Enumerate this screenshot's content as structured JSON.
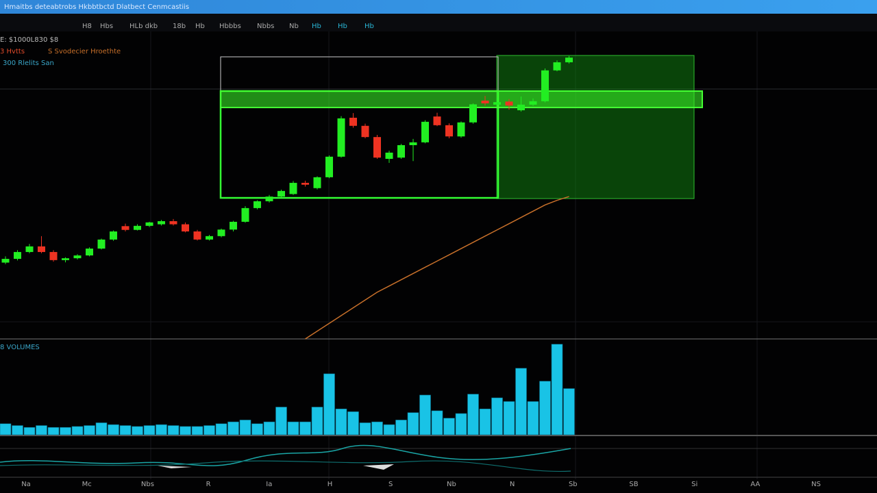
{
  "window": {
    "title": "Hmaitbs deteabtrobs  Hkbbtbctd Dlatbect  Cenmcastiis"
  },
  "toolbar": [
    "E: $1000L830 $8",
    "H8",
    "Hbs",
    "HLb dkb",
    "18b",
    "Hb",
    "Hbbbs",
    "Nbbs",
    "Nb",
    "Hb",
    "Hb",
    "Hb"
  ],
  "legend": [
    "3 Hvtts",
    "S Svodecier Hroethte",
    "300 Rlelits San"
  ],
  "time_axis": [
    "Na",
    "Mc",
    "Nbs",
    "R",
    "Ia",
    "H",
    "S",
    "Nb",
    "N",
    "Sb",
    "SB",
    "Si",
    "AA",
    "NS"
  ],
  "chart_data": [
    {
      "type": "candlestick",
      "ylim": [
        0,
        100
      ],
      "up_color": "#22ee22",
      "down_color": "#ee3322",
      "open": [
        24.5,
        25.7,
        27.9,
        29.7,
        27.9,
        25.3,
        25.9,
        26.8,
        29.0,
        31.9,
        36.2,
        35.0,
        36.3,
        36.8,
        37.8,
        36.8,
        34.5,
        31.9,
        33.0,
        35.1,
        37.6,
        42.0,
        44.2,
        45.7,
        46.5,
        50.1,
        48.4,
        51.9,
        58.5,
        71.0,
        68.4,
        64.8,
        57.8,
        58.2,
        62.2,
        63.1,
        71.4,
        68.6,
        65.0,
        69.5,
        76.5,
        75.2,
        76.2,
        73.4,
        75.2,
        76.3,
        86.2,
        88.8
      ],
      "high": [
        26.5,
        28.5,
        30.5,
        33.0,
        28.5,
        26.2,
        27.2,
        29.4,
        32.2,
        34.8,
        37.0,
        36.8,
        37.6,
        38.2,
        38.5,
        37.4,
        35.0,
        33.4,
        35.4,
        37.9,
        42.6,
        44.5,
        46.2,
        47.9,
        50.7,
        50.8,
        52.2,
        58.9,
        71.5,
        72.5,
        69.1,
        65.5,
        60.4,
        62.6,
        64.2,
        70.2,
        72.6,
        69.2,
        69.8,
        75.6,
        78.0,
        77.4,
        77.0,
        77.8,
        77.2,
        86.8,
        89.4,
        90.8
      ],
      "low": [
        24.0,
        25.2,
        27.5,
        27.5,
        24.8,
        24.6,
        25.5,
        26.5,
        28.7,
        31.5,
        34.5,
        34.8,
        35.9,
        36.4,
        36.4,
        34.2,
        31.6,
        31.6,
        32.6,
        34.5,
        37.3,
        41.6,
        43.8,
        45.3,
        46.2,
        48.9,
        48.0,
        51.6,
        58.2,
        67.8,
        64.4,
        57.8,
        56.5,
        57.8,
        57.1,
        62.8,
        68.3,
        64.4,
        64.6,
        69.1,
        74.9,
        74.4,
        73.6,
        73.0,
        74.8,
        75.9,
        85.9,
        88.4
      ],
      "close": [
        25.7,
        27.9,
        29.7,
        27.9,
        25.3,
        25.9,
        26.8,
        29.0,
        31.9,
        34.5,
        35.0,
        36.3,
        37.4,
        37.8,
        36.8,
        34.5,
        31.9,
        33.0,
        35.1,
        37.6,
        42.0,
        44.2,
        45.7,
        47.5,
        50.1,
        49.5,
        51.9,
        58.5,
        70.8,
        68.4,
        64.8,
        58.2,
        59.8,
        62.2,
        63.1,
        69.7,
        68.6,
        65.0,
        69.5,
        75.3,
        75.6,
        76.0,
        74.9,
        75.2,
        76.3,
        86.2,
        88.8,
        90.3
      ],
      "overlay": {
        "color": "#c8702a",
        "values": [
          null,
          null,
          null,
          null,
          null,
          null,
          null,
          null,
          null,
          null,
          null,
          null,
          null,
          null,
          null,
          null,
          null,
          null,
          null,
          null,
          null,
          null,
          null,
          null,
          null,
          0,
          2.5,
          5,
          7.5,
          10,
          12.5,
          15,
          17,
          19,
          21,
          23,
          25,
          27,
          29,
          31,
          33,
          35,
          37,
          39,
          41,
          43,
          44.5,
          45.7
        ]
      }
    },
    {
      "type": "bar",
      "title": "8 VOLUMES",
      "color": "#19c3e6",
      "ylim": [
        0,
        100
      ],
      "values": [
        12,
        10,
        8,
        10,
        8,
        8,
        9,
        10,
        13,
        11,
        10,
        9,
        10,
        11,
        10,
        9,
        9,
        10,
        12,
        14,
        16,
        12,
        14,
        30,
        14,
        14,
        30,
        66,
        28,
        25,
        13,
        14,
        11,
        16,
        24,
        43,
        26,
        18,
        23,
        44,
        28,
        40,
        36,
        72,
        36,
        58,
        98,
        50
      ]
    }
  ]
}
